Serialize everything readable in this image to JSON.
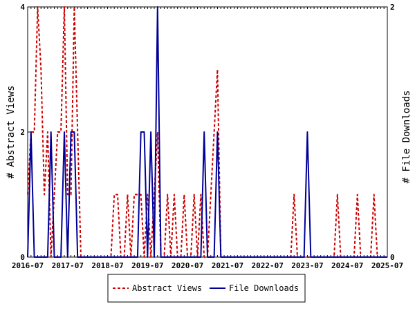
{
  "chart_data": {
    "type": "line",
    "ylabel_left": "# Abstract Views",
    "ylabel_right": "# File Downloads",
    "x_tick_labels": [
      "2016-07",
      "2017-07",
      "2018-07",
      "2019-07",
      "2020-07",
      "2021-07",
      "2022-07",
      "2023-07",
      "2024-07",
      "2025-07"
    ],
    "y_left_ticks": [
      "0",
      "2",
      "4"
    ],
    "y_right_ticks": [
      "0",
      "2"
    ],
    "y_left_range": [
      0,
      4
    ],
    "y_right_range": [
      0,
      2
    ],
    "x_range": [
      "2016-07",
      "2025-07"
    ],
    "legend_position": "bottom-center",
    "series": [
      {
        "name": "Abstract Views",
        "axis": "left",
        "color": "#cc0000",
        "style": "dashed",
        "points": [
          [
            "2016-07",
            1
          ],
          [
            "2016-08",
            2
          ],
          [
            "2016-09",
            2
          ],
          [
            "2016-10",
            4
          ],
          [
            "2016-11",
            3
          ],
          [
            "2016-12",
            1
          ],
          [
            "2017-01",
            2
          ],
          [
            "2017-02",
            0
          ],
          [
            "2017-03",
            1
          ],
          [
            "2017-04",
            2
          ],
          [
            "2017-05",
            2
          ],
          [
            "2017-06",
            4
          ],
          [
            "2017-07",
            1
          ],
          [
            "2017-08",
            1
          ],
          [
            "2017-09",
            4
          ],
          [
            "2017-10",
            2
          ],
          [
            "2017-11",
            0
          ],
          [
            "2017-12",
            0
          ],
          [
            "2018-01",
            0
          ],
          [
            "2018-02",
            0
          ],
          [
            "2018-03",
            0
          ],
          [
            "2018-04",
            0
          ],
          [
            "2018-05",
            0
          ],
          [
            "2018-06",
            0
          ],
          [
            "2018-07",
            0
          ],
          [
            "2018-08",
            0
          ],
          [
            "2018-09",
            1
          ],
          [
            "2018-10",
            1
          ],
          [
            "2018-11",
            0
          ],
          [
            "2018-12",
            0
          ],
          [
            "2019-01",
            1
          ],
          [
            "2019-02",
            0
          ],
          [
            "2019-03",
            1
          ],
          [
            "2019-04",
            1
          ],
          [
            "2019-05",
            1
          ],
          [
            "2019-06",
            0
          ],
          [
            "2019-07",
            1
          ],
          [
            "2019-08",
            0
          ],
          [
            "2019-09",
            1
          ],
          [
            "2019-10",
            2
          ],
          [
            "2019-11",
            0
          ],
          [
            "2019-12",
            0
          ],
          [
            "2020-01",
            1
          ],
          [
            "2020-02",
            0
          ],
          [
            "2020-03",
            1
          ],
          [
            "2020-04",
            0
          ],
          [
            "2020-05",
            0
          ],
          [
            "2020-06",
            1
          ],
          [
            "2020-07",
            0
          ],
          [
            "2020-08",
            0
          ],
          [
            "2020-09",
            1
          ],
          [
            "2020-10",
            0
          ],
          [
            "2020-11",
            1
          ],
          [
            "2020-12",
            0
          ],
          [
            "2021-01",
            0
          ],
          [
            "2021-02",
            1
          ],
          [
            "2021-03",
            2
          ],
          [
            "2021-04",
            3
          ],
          [
            "2021-05",
            0
          ],
          [
            "2021-06",
            0
          ],
          [
            "2021-07",
            0
          ],
          [
            "2021-08",
            0
          ],
          [
            "2021-09",
            0
          ],
          [
            "2021-10",
            0
          ],
          [
            "2021-11",
            0
          ],
          [
            "2021-12",
            0
          ],
          [
            "2022-01",
            0
          ],
          [
            "2022-02",
            0
          ],
          [
            "2022-03",
            0
          ],
          [
            "2022-04",
            0
          ],
          [
            "2022-05",
            0
          ],
          [
            "2022-06",
            0
          ],
          [
            "2022-07",
            0
          ],
          [
            "2022-08",
            0
          ],
          [
            "2022-09",
            0
          ],
          [
            "2022-10",
            0
          ],
          [
            "2022-11",
            0
          ],
          [
            "2022-12",
            0
          ],
          [
            "2023-01",
            0
          ],
          [
            "2023-02",
            0
          ],
          [
            "2023-03",
            1
          ],
          [
            "2023-04",
            0
          ],
          [
            "2023-05",
            0
          ],
          [
            "2023-06",
            0
          ],
          [
            "2023-07",
            0
          ],
          [
            "2023-08",
            0
          ],
          [
            "2023-09",
            0
          ],
          [
            "2023-10",
            0
          ],
          [
            "2023-11",
            0
          ],
          [
            "2023-12",
            0
          ],
          [
            "2024-01",
            0
          ],
          [
            "2024-02",
            0
          ],
          [
            "2024-03",
            0
          ],
          [
            "2024-04",
            1
          ],
          [
            "2024-05",
            0
          ],
          [
            "2024-06",
            0
          ],
          [
            "2024-07",
            0
          ],
          [
            "2024-08",
            0
          ],
          [
            "2024-09",
            0
          ],
          [
            "2024-10",
            1
          ],
          [
            "2024-11",
            0
          ],
          [
            "2024-12",
            0
          ],
          [
            "2025-01",
            0
          ],
          [
            "2025-02",
            0
          ],
          [
            "2025-03",
            1
          ],
          [
            "2025-04",
            0
          ],
          [
            "2025-05",
            0
          ],
          [
            "2025-06",
            0
          ],
          [
            "2025-07",
            0
          ]
        ]
      },
      {
        "name": "File Downloads",
        "axis": "right",
        "color": "#000099",
        "style": "solid",
        "points": [
          [
            "2016-07",
            0
          ],
          [
            "2016-08",
            1
          ],
          [
            "2016-09",
            0
          ],
          [
            "2016-10",
            0
          ],
          [
            "2016-11",
            0
          ],
          [
            "2016-12",
            0
          ],
          [
            "2017-01",
            0
          ],
          [
            "2017-02",
            1
          ],
          [
            "2017-03",
            0
          ],
          [
            "2017-04",
            0
          ],
          [
            "2017-05",
            0
          ],
          [
            "2017-06",
            1
          ],
          [
            "2017-07",
            0
          ],
          [
            "2017-08",
            1
          ],
          [
            "2017-09",
            1
          ],
          [
            "2017-10",
            0
          ],
          [
            "2017-11",
            0
          ],
          [
            "2017-12",
            0
          ],
          [
            "2018-01",
            0
          ],
          [
            "2018-02",
            0
          ],
          [
            "2018-03",
            0
          ],
          [
            "2018-04",
            0
          ],
          [
            "2018-05",
            0
          ],
          [
            "2018-06",
            0
          ],
          [
            "2018-07",
            0
          ],
          [
            "2018-08",
            0
          ],
          [
            "2018-09",
            0
          ],
          [
            "2018-10",
            0
          ],
          [
            "2018-11",
            0
          ],
          [
            "2018-12",
            0
          ],
          [
            "2019-01",
            0
          ],
          [
            "2019-02",
            0
          ],
          [
            "2019-03",
            0
          ],
          [
            "2019-04",
            0
          ],
          [
            "2019-05",
            1
          ],
          [
            "2019-06",
            1
          ],
          [
            "2019-07",
            0
          ],
          [
            "2019-08",
            1
          ],
          [
            "2019-09",
            0
          ],
          [
            "2019-10",
            2
          ],
          [
            "2019-11",
            0
          ],
          [
            "2019-12",
            0
          ],
          [
            "2020-01",
            0
          ],
          [
            "2020-02",
            0
          ],
          [
            "2020-03",
            0
          ],
          [
            "2020-04",
            0
          ],
          [
            "2020-05",
            0
          ],
          [
            "2020-06",
            0
          ],
          [
            "2020-07",
            0
          ],
          [
            "2020-08",
            0
          ],
          [
            "2020-09",
            0
          ],
          [
            "2020-10",
            0
          ],
          [
            "2020-11",
            0
          ],
          [
            "2020-12",
            1
          ],
          [
            "2021-01",
            0
          ],
          [
            "2021-02",
            0
          ],
          [
            "2021-03",
            0
          ],
          [
            "2021-04",
            1
          ],
          [
            "2021-05",
            0
          ],
          [
            "2021-06",
            0
          ],
          [
            "2021-07",
            0
          ],
          [
            "2021-08",
            0
          ],
          [
            "2021-09",
            0
          ],
          [
            "2021-10",
            0
          ],
          [
            "2021-11",
            0
          ],
          [
            "2021-12",
            0
          ],
          [
            "2022-01",
            0
          ],
          [
            "2022-02",
            0
          ],
          [
            "2022-03",
            0
          ],
          [
            "2022-04",
            0
          ],
          [
            "2022-05",
            0
          ],
          [
            "2022-06",
            0
          ],
          [
            "2022-07",
            0
          ],
          [
            "2022-08",
            0
          ],
          [
            "2022-09",
            0
          ],
          [
            "2022-10",
            0
          ],
          [
            "2022-11",
            0
          ],
          [
            "2022-12",
            0
          ],
          [
            "2023-01",
            0
          ],
          [
            "2023-02",
            0
          ],
          [
            "2023-03",
            0
          ],
          [
            "2023-04",
            0
          ],
          [
            "2023-05",
            0
          ],
          [
            "2023-06",
            0
          ],
          [
            "2023-07",
            1
          ],
          [
            "2023-08",
            0
          ],
          [
            "2023-09",
            0
          ],
          [
            "2023-10",
            0
          ],
          [
            "2023-11",
            0
          ],
          [
            "2023-12",
            0
          ],
          [
            "2024-01",
            0
          ],
          [
            "2024-02",
            0
          ],
          [
            "2024-03",
            0
          ],
          [
            "2024-04",
            0
          ],
          [
            "2024-05",
            0
          ],
          [
            "2024-06",
            0
          ],
          [
            "2024-07",
            0
          ],
          [
            "2024-08",
            0
          ],
          [
            "2024-09",
            0
          ],
          [
            "2024-10",
            0
          ],
          [
            "2024-11",
            0
          ],
          [
            "2024-12",
            0
          ],
          [
            "2025-01",
            0
          ],
          [
            "2025-02",
            0
          ],
          [
            "2025-03",
            0
          ],
          [
            "2025-04",
            0
          ],
          [
            "2025-05",
            0
          ],
          [
            "2025-06",
            0
          ],
          [
            "2025-07",
            0
          ]
        ]
      }
    ]
  }
}
